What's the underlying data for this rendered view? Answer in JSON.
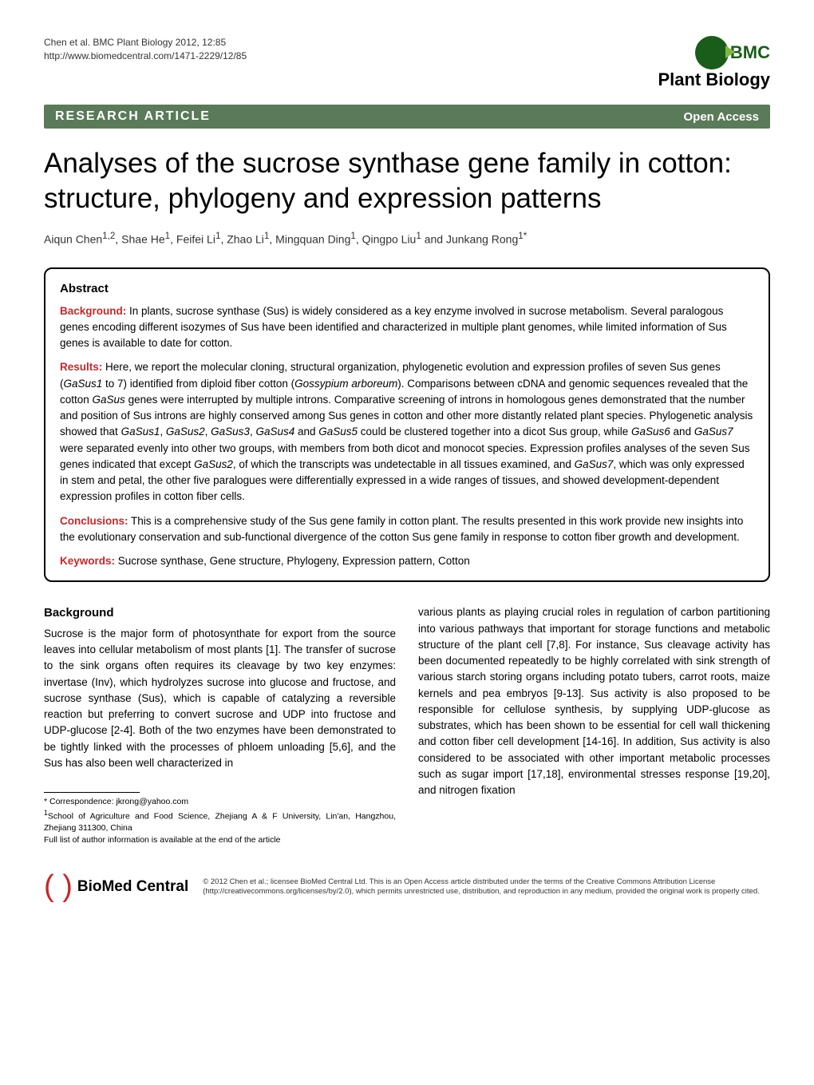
{
  "header": {
    "citation_line1": "Chen et al. BMC Plant Biology 2012, 12:85",
    "citation_line2": "http://www.biomedcentral.com/1471-2229/12/85",
    "logo_bmc": "BMC",
    "logo_sub": "Plant Biology"
  },
  "banner": {
    "left": "RESEARCH ARTICLE",
    "right": "Open Access"
  },
  "title": "Analyses of the sucrose synthase gene family in cotton: structure, phylogeny and expression patterns",
  "authors_html": "Aiqun Chen<sup>1,2</sup>, Shae He<sup>1</sup>, Feifei Li<sup>1</sup>, Zhao Li<sup>1</sup>, Mingquan Ding<sup>1</sup>, Qingpo Liu<sup>1</sup> and Junkang Rong<sup>1*</sup>",
  "abstract": {
    "heading": "Abstract",
    "background_label": "Background:",
    "background_text": " In plants, sucrose synthase (Sus) is widely considered as a key enzyme involved in sucrose metabolism. Several paralogous genes encoding different isozymes of Sus have been identified and characterized in multiple plant genomes, while limited information of Sus genes is available to date for cotton.",
    "results_label": "Results:",
    "results_text_html": " Here, we report the molecular cloning, structural organization, phylogenetic evolution and expression profiles of seven Sus genes (<span class=\"italic\">GaSus1</span> to 7) identified from diploid fiber cotton (<span class=\"italic\">Gossypium arboreum</span>). Comparisons between cDNA and genomic sequences revealed that the cotton <span class=\"italic\">GaSus</span> genes were interrupted by multiple introns. Comparative screening of introns in homologous genes demonstrated that the number and position of Sus introns are highly conserved among Sus genes in cotton and other more distantly related plant species. Phylogenetic analysis showed that <span class=\"italic\">GaSus1</span>, <span class=\"italic\">GaSus2</span>, <span class=\"italic\">GaSus3</span>, <span class=\"italic\">GaSus4</span> and <span class=\"italic\">GaSus5</span> could be clustered together into a dicot Sus group, while <span class=\"italic\">GaSus6</span> and <span class=\"italic\">GaSus7</span> were separated evenly into other two groups, with members from both dicot and monocot species. Expression profiles analyses of the seven Sus genes indicated that except <span class=\"italic\">GaSus2</span>, of which the transcripts was undetectable in all tissues examined, and <span class=\"italic\">GaSus7</span>, which was only expressed in stem and petal, the other five paralogues were differentially expressed in a wide ranges of tissues, and showed development-dependent expression profiles in cotton fiber cells.",
    "conclusions_label": "Conclusions:",
    "conclusions_text": " This is a comprehensive study of the Sus gene family in cotton plant. The results presented in this work provide new insights into the evolutionary conservation and sub-functional divergence of the cotton Sus gene family in response to cotton fiber growth and development.",
    "keywords_label": "Keywords:",
    "keywords_text": " Sucrose synthase, Gene structure, Phylogeny, Expression pattern, Cotton"
  },
  "body": {
    "background_heading": "Background",
    "col1_text": "Sucrose is the major form of photosynthate for export from the source leaves into cellular metabolism of most plants [1]. The transfer of sucrose to the sink organs often requires its cleavage by two key enzymes: invertase (Inv), which hydrolyzes sucrose into glucose and fructose, and sucrose synthase (Sus), which is capable of catalyzing a reversible reaction but preferring to convert sucrose and UDP into fructose and UDP-glucose [2-4]. Both of the two enzymes have been demonstrated to be tightly linked with the processes of phloem unloading [5,6], and the Sus has also been well characterized in",
    "col2_text": "various plants as playing crucial roles in regulation of carbon partitioning into various pathways that important for storage functions and metabolic structure of the plant cell [7,8]. For instance, Sus cleavage activity has been documented repeatedly to be highly correlated with sink strength of various starch storing organs including potato tubers, carrot roots, maize kernels and pea embryos [9-13]. Sus activity is also proposed to be responsible for cellulose synthesis, by supplying UDP-glucose as substrates, which has been shown to be essential for cell wall thickening and cotton fiber cell development [14-16]. In addition, Sus activity is also considered to be associated with other important metabolic processes such as sugar import [17,18], environmental stresses response [19,20], and nitrogen fixation"
  },
  "footnotes": {
    "correspondence": "* Correspondence: jkrong@yahoo.com",
    "affiliation": "1School of Agriculture and Food Science, Zhejiang A & F University, Lin'an, Hangzhou, Zhejiang 311300, China",
    "full_list": "Full list of author information is available at the end of the article"
  },
  "footer": {
    "bmc_text": "BioMed Central",
    "license": "© 2012 Chen et al.; licensee BioMed Central Ltd. This is an Open Access article distributed under the terms of the Creative Commons Attribution License (http://creativecommons.org/licenses/by/2.0), which permits unrestricted use, distribution, and reproduction in any medium, provided the original work is properly cited."
  },
  "colors": {
    "banner_bg": "#5a7a5a",
    "accent_red": "#c4282d",
    "logo_green": "#1a5c1a",
    "logo_light_green": "#7fb83f"
  }
}
